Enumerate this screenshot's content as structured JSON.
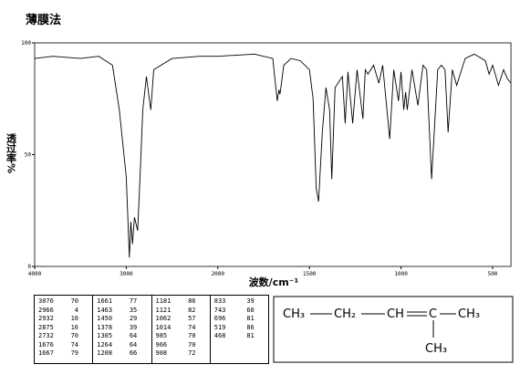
{
  "title": "薄膜法",
  "chart_data": {
    "type": "line",
    "x_label": "波数/cm⁻¹",
    "y_label": "透过率%",
    "color": "#000000",
    "xlim": [
      4000,
      400
    ],
    "xticks": [
      4000,
      3000,
      2000,
      1500,
      1000,
      500
    ],
    "ylim": [
      0,
      100
    ],
    "yticks": [
      0,
      50,
      100
    ],
    "x": [
      4000,
      3800,
      3500,
      3300,
      3150,
      3076,
      3000,
      2966,
      2950,
      2932,
      2910,
      2875,
      2850,
      2820,
      2780,
      2732,
      2700,
      2500,
      2200,
      2000,
      1800,
      1700,
      1676,
      1667,
      1661,
      1640,
      1600,
      1550,
      1500,
      1480,
      1463,
      1450,
      1430,
      1410,
      1390,
      1378,
      1360,
      1320,
      1305,
      1290,
      1264,
      1240,
      1208,
      1195,
      1181,
      1150,
      1121,
      1100,
      1062,
      1040,
      1014,
      1000,
      985,
      975,
      966,
      940,
      908,
      880,
      860,
      833,
      800,
      780,
      760,
      743,
      720,
      696,
      650,
      600,
      540,
      519,
      500,
      468,
      440,
      420,
      400
    ],
    "values": [
      93,
      94,
      93,
      94,
      90,
      70,
      40,
      4,
      20,
      10,
      22,
      16,
      40,
      70,
      85,
      70,
      88,
      93,
      94,
      94,
      95,
      93,
      74,
      79,
      77,
      90,
      93,
      92,
      88,
      75,
      35,
      29,
      60,
      80,
      70,
      39,
      80,
      85,
      64,
      87,
      64,
      88,
      66,
      88,
      86,
      90,
      82,
      90,
      57,
      88,
      74,
      87,
      70,
      78,
      70,
      88,
      72,
      90,
      88,
      39,
      88,
      90,
      88,
      60,
      88,
      81,
      93,
      95,
      92,
      86,
      90,
      81,
      88,
      84,
      82
    ]
  },
  "peak_table": [
    [
      [
        3076,
        70
      ],
      [
        2966,
        4
      ],
      [
        2932,
        10
      ],
      [
        2875,
        16
      ],
      [
        2732,
        70
      ],
      [
        1676,
        74
      ],
      [
        1667,
        79
      ]
    ],
    [
      [
        1661,
        77
      ],
      [
        1463,
        35
      ],
      [
        1450,
        29
      ],
      [
        1378,
        39
      ],
      [
        1305,
        64
      ],
      [
        1264,
        64
      ],
      [
        1208,
        66
      ]
    ],
    [
      [
        1181,
        86
      ],
      [
        1121,
        82
      ],
      [
        1062,
        57
      ],
      [
        1014,
        74
      ],
      [
        985,
        70
      ],
      [
        966,
        70
      ],
      [
        908,
        72
      ]
    ],
    [
      [
        833,
        39
      ],
      [
        743,
        60
      ],
      [
        696,
        81
      ],
      [
        519,
        86
      ],
      [
        468,
        81
      ]
    ]
  ],
  "structure": [
    "CH₃",
    "CH₂",
    "CH",
    "C",
    "CH₃",
    "CH₃"
  ]
}
